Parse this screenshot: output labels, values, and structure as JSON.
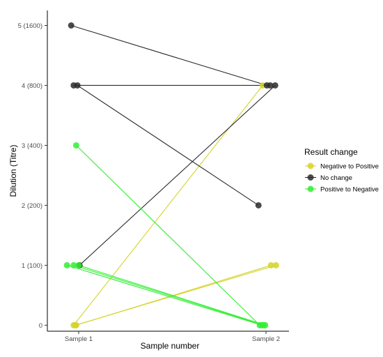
{
  "chart_data": {
    "type": "scatter",
    "title": "",
    "xlabel": "Sample number",
    "ylabel": "Dilution (Titre)",
    "categories": [
      "Sample 1",
      "Sample 2"
    ],
    "y_ticks": [
      {
        "value": 0,
        "label": "0"
      },
      {
        "value": 1,
        "label": "1 (100)"
      },
      {
        "value": 2,
        "label": "2 (200)"
      },
      {
        "value": 3,
        "label": "3 (400)"
      },
      {
        "value": 4,
        "label": "4 (800)"
      },
      {
        "value": 5,
        "label": "5 (1600)"
      }
    ],
    "ylim": [
      -0.1,
      5.25
    ],
    "grid": false,
    "legend_position": "right",
    "legend_title": "Result change",
    "series": [
      {
        "name": "Negative to Positive",
        "color": "#d4d42a",
        "pairs": [
          {
            "s1": {
              "jitter": -0.12,
              "y": 0
            },
            "s2": {
              "jitter": -0.08,
              "y": 4
            }
          },
          {
            "s1": {
              "jitter": -0.06,
              "y": 0
            },
            "s2": {
              "jitter": 0.12,
              "y": 1
            }
          },
          {
            "s1": {
              "jitter": -0.08,
              "y": 0
            },
            "s2": {
              "jitter": 0.24,
              "y": 1
            }
          }
        ]
      },
      {
        "name": "No change",
        "color": "#2b2b2b",
        "pairs": [
          {
            "s1": {
              "jitter": -0.18,
              "y": 5
            },
            "s2": {
              "jitter": 0.02,
              "y": 4
            }
          },
          {
            "s1": {
              "jitter": -0.12,
              "y": 4
            },
            "s2": {
              "jitter": 0.1,
              "y": 4
            }
          },
          {
            "s1": {
              "jitter": -0.03,
              "y": 4
            },
            "s2": {
              "jitter": -0.18,
              "y": 2
            }
          },
          {
            "s1": {
              "jitter": 0.02,
              "y": 1
            },
            "s2": {
              "jitter": 0.22,
              "y": 4
            }
          }
        ]
      },
      {
        "name": "Positive to Negative",
        "color": "#33ee33",
        "pairs": [
          {
            "s1": {
              "jitter": -0.06,
              "y": 3
            },
            "s2": {
              "jitter": -0.15,
              "y": 0
            }
          },
          {
            "s1": {
              "jitter": -0.28,
              "y": 1
            },
            "s2": {
              "jitter": -0.1,
              "y": 0
            }
          },
          {
            "s1": {
              "jitter": -0.12,
              "y": 1
            },
            "s2": {
              "jitter": -0.06,
              "y": 0
            }
          },
          {
            "s1": {
              "jitter": 0.0,
              "y": 1
            },
            "s2": {
              "jitter": -0.02,
              "y": 0
            }
          }
        ]
      }
    ]
  }
}
